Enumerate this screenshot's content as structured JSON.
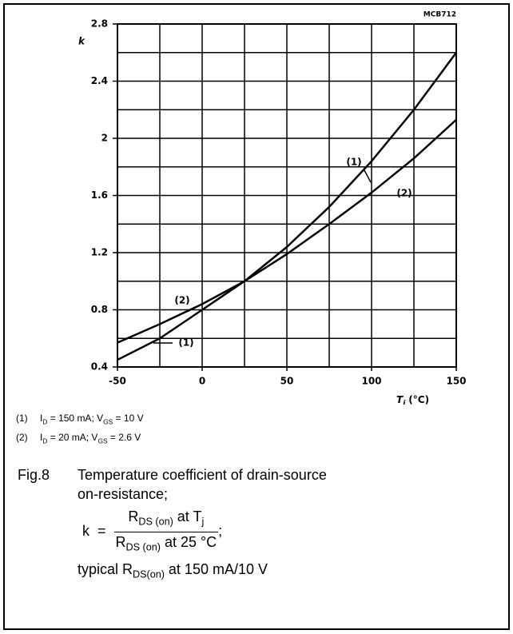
{
  "chart_data": {
    "type": "line",
    "figure_code": "MCB712",
    "ylabel": "k",
    "xlabel_main": "T",
    "xlabel_sub": "j",
    "xlabel_unit": "(°C)",
    "x": [
      -50,
      -25,
      0,
      25,
      50,
      75,
      100,
      125,
      150
    ],
    "series": [
      {
        "name": "(1)",
        "color": "#000000",
        "values": [
          0.45,
          0.6,
          0.8,
          1.0,
          1.24,
          1.52,
          1.84,
          2.2,
          2.6
        ]
      },
      {
        "name": "(2)",
        "color": "#000000",
        "values": [
          0.57,
          0.7,
          0.84,
          1.0,
          1.19,
          1.4,
          1.62,
          1.86,
          2.13
        ]
      }
    ],
    "xlim": [
      -50,
      150
    ],
    "xticks": [
      -50,
      0,
      50,
      100,
      150
    ],
    "x_minor_ticks": [
      -25,
      25,
      75,
      125
    ],
    "ylim": [
      0.4,
      2.8
    ],
    "yticks": [
      0.4,
      0.8,
      1.2,
      1.6,
      2,
      2.4,
      2.8
    ],
    "y_minor_ticks": [
      0.6,
      1,
      1.4,
      1.8,
      2.2,
      2.6
    ],
    "grid": true
  },
  "notes": [
    {
      "marker": "(1)",
      "segments": [
        {
          "text": "I"
        },
        {
          "sub": "D"
        },
        {
          "text": " = 150 mA; V"
        },
        {
          "sub": "GS"
        },
        {
          "text": " = 10 V"
        }
      ]
    },
    {
      "marker": "(2)",
      "segments": [
        {
          "text": "I"
        },
        {
          "sub": "D"
        },
        {
          "text": " = 20 mA; V"
        },
        {
          "sub": "GS"
        },
        {
          "text": " = 2.6 V"
        }
      ]
    }
  ],
  "caption": {
    "figure": "Fig.8",
    "lines": [
      "Temperature coefficient of drain-source",
      "on-resistance;"
    ],
    "formula": {
      "lhs": "k",
      "equals": "=",
      "numerator": [
        {
          "text": "R"
        },
        {
          "sub": "DS (on)"
        },
        {
          "text": " at T"
        },
        {
          "sub": "j"
        }
      ],
      "denominator": [
        {
          "text": "R"
        },
        {
          "sub": "DS (on)"
        },
        {
          "text": " at 25 °C"
        }
      ],
      "end": ";"
    },
    "last_line": [
      {
        "text": "typical R"
      },
      {
        "sub": "DS(on)"
      },
      {
        "text": " at 150 mA/10 V"
      }
    ]
  }
}
